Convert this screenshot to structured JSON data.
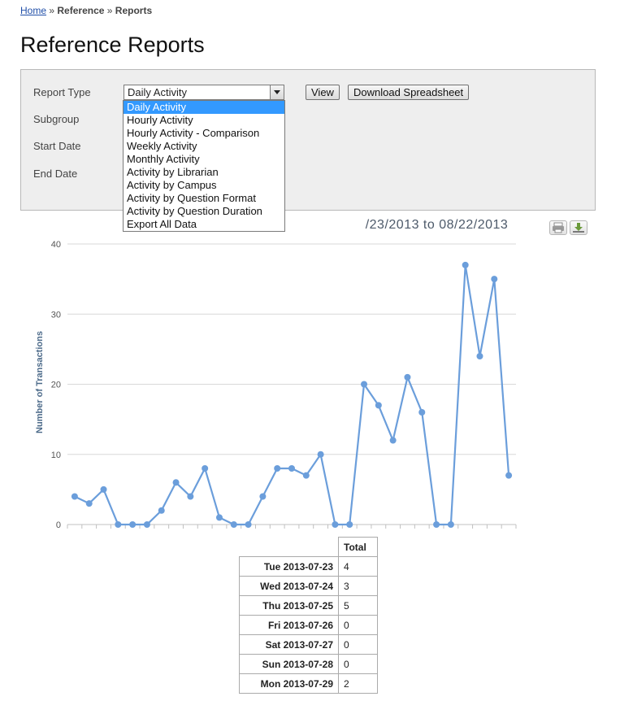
{
  "breadcrumb": {
    "home": "Home",
    "sep1": "»",
    "reference": "Reference",
    "sep2": "»",
    "current": "Reports"
  },
  "page_title": "Reference Reports",
  "form": {
    "report_type_label": "Report Type",
    "subgroup_label": "Subgroup",
    "start_date_label": "Start Date",
    "end_date_label": "End Date",
    "report_type_value": "Daily Activity",
    "view_label": "View",
    "download_label": "Download Spreadsheet"
  },
  "dropdown": {
    "options": [
      "Daily Activity",
      "Hourly Activity",
      "Hourly Activity - Comparison",
      "Weekly Activity",
      "Monthly Activity",
      "Activity by Librarian",
      "Activity by Campus",
      "Activity by Question Format",
      "Activity by Question Duration",
      "Export All Data"
    ],
    "selected_index": 0
  },
  "chart_title_visible": "/23/2013 to 08/22/2013",
  "icons": {
    "print": "print-icon",
    "download": "download-icon"
  },
  "colors": {
    "series": "#6b9edb",
    "accent": "#3399ff"
  },
  "chart_data": {
    "type": "line",
    "ylabel": "Number of Transactions",
    "ylim": [
      0,
      40
    ],
    "yticks": [
      0,
      10,
      20,
      30,
      40
    ],
    "series": [
      {
        "values": [
          4,
          3,
          5,
          0,
          0,
          0,
          2,
          6,
          4,
          8,
          1,
          0,
          0,
          4,
          8,
          8,
          7,
          10,
          0,
          0,
          20,
          17,
          12,
          21,
          16,
          0,
          0,
          37,
          24,
          35,
          7
        ]
      }
    ]
  },
  "table": {
    "header": "Total",
    "rows": [
      {
        "date": "Tue 2013-07-23",
        "total": "4"
      },
      {
        "date": "Wed 2013-07-24",
        "total": "3"
      },
      {
        "date": "Thu 2013-07-25",
        "total": "5"
      },
      {
        "date": "Fri 2013-07-26",
        "total": "0"
      },
      {
        "date": "Sat 2013-07-27",
        "total": "0"
      },
      {
        "date": "Sun 2013-07-28",
        "total": "0"
      },
      {
        "date": "Mon 2013-07-29",
        "total": "2"
      }
    ]
  }
}
